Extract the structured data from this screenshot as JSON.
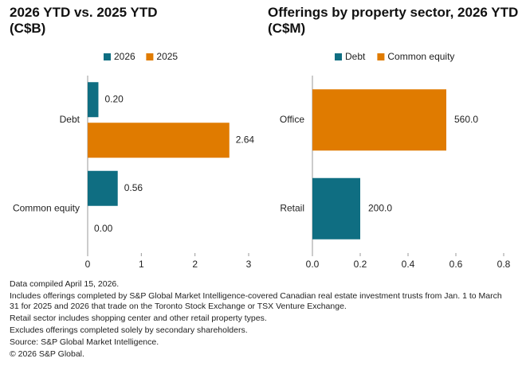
{
  "chart_data": [
    {
      "type": "bar",
      "orientation": "horizontal",
      "title": "2026 YTD vs. 2025 YTD (C$B)",
      "categories": [
        "Debt",
        "Common equity"
      ],
      "series": [
        {
          "name": "2026",
          "color": "#0f6e82",
          "values": [
            0.2,
            0.56
          ],
          "value_labels": [
            "0.20",
            "0.56"
          ]
        },
        {
          "name": "2025",
          "color": "#e07b00",
          "values": [
            2.64,
            0.0
          ],
          "value_labels": [
            "2.64",
            "0.00"
          ]
        }
      ],
      "xlim": [
        0,
        3
      ],
      "xticks": [
        0,
        1,
        2,
        3
      ],
      "grid": false,
      "legend": "top"
    },
    {
      "type": "stacked_bar",
      "orientation": "horizontal",
      "title": "Offerings by property sector, 2026 YTD (C$M)",
      "categories": [
        "Office",
        "Retail"
      ],
      "series": [
        {
          "name": "Debt",
          "color": "#0f6e82",
          "values": [
            null,
            0.2
          ],
          "value_labels": [
            null,
            "200.0"
          ]
        },
        {
          "name": "Common equity",
          "color": "#e07b00",
          "values": [
            0.56,
            null
          ],
          "value_labels": [
            "560.0",
            null
          ]
        }
      ],
      "xlim": [
        0,
        0.8
      ],
      "xticks": [
        {
          "value": 0,
          "label": "0.0"
        },
        {
          "value": 0.2,
          "label": "0.2"
        },
        {
          "value": 0.4,
          "label": "0.4"
        },
        {
          "value": 0.6,
          "label": "0.6"
        },
        {
          "value": 0.8,
          "label": "0.8"
        }
      ],
      "grid": false,
      "legend": "top"
    }
  ],
  "notes": [
    "Data compiled April 15, 2026.",
    "Includes offerings completed by S&P Global Market Intelligence-covered Canadian real estate investment trusts from Jan. 1 to March 31 for 2025 and 2026 that trade on the Toronto Stock Exchange or TSX Venture Exchange.",
    "Retail sector includes shopping center and other retail property types.",
    "Excludes offerings completed solely by secondary shareholders.",
    "Source: S&P Global Market Intelligence.",
    "© 2026 S&P Global."
  ]
}
